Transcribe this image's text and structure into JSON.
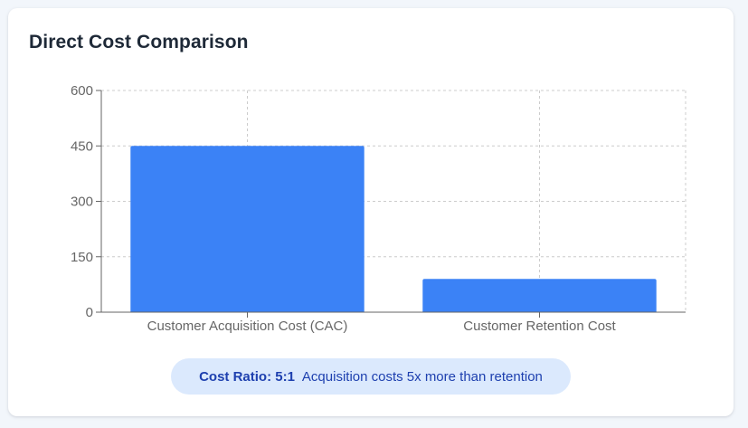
{
  "card": {
    "title": "Direct Cost Comparison"
  },
  "chart_data": {
    "type": "bar",
    "title": "Direct Cost Comparison",
    "categories": [
      "Customer Acquisition Cost (CAC)",
      "Customer Retention Cost"
    ],
    "values": [
      450,
      90
    ],
    "yticks": [
      0,
      150,
      300,
      450,
      600
    ],
    "ylim": [
      0,
      600
    ],
    "grid": true,
    "bar_color": "#3b82f6",
    "grid_color": "#cccccc",
    "axis_color": "#666666",
    "tick_label_color": "#666666"
  },
  "ratio": {
    "label": "Cost Ratio: 5:1",
    "description": "Acquisition costs 5x more than retention"
  }
}
